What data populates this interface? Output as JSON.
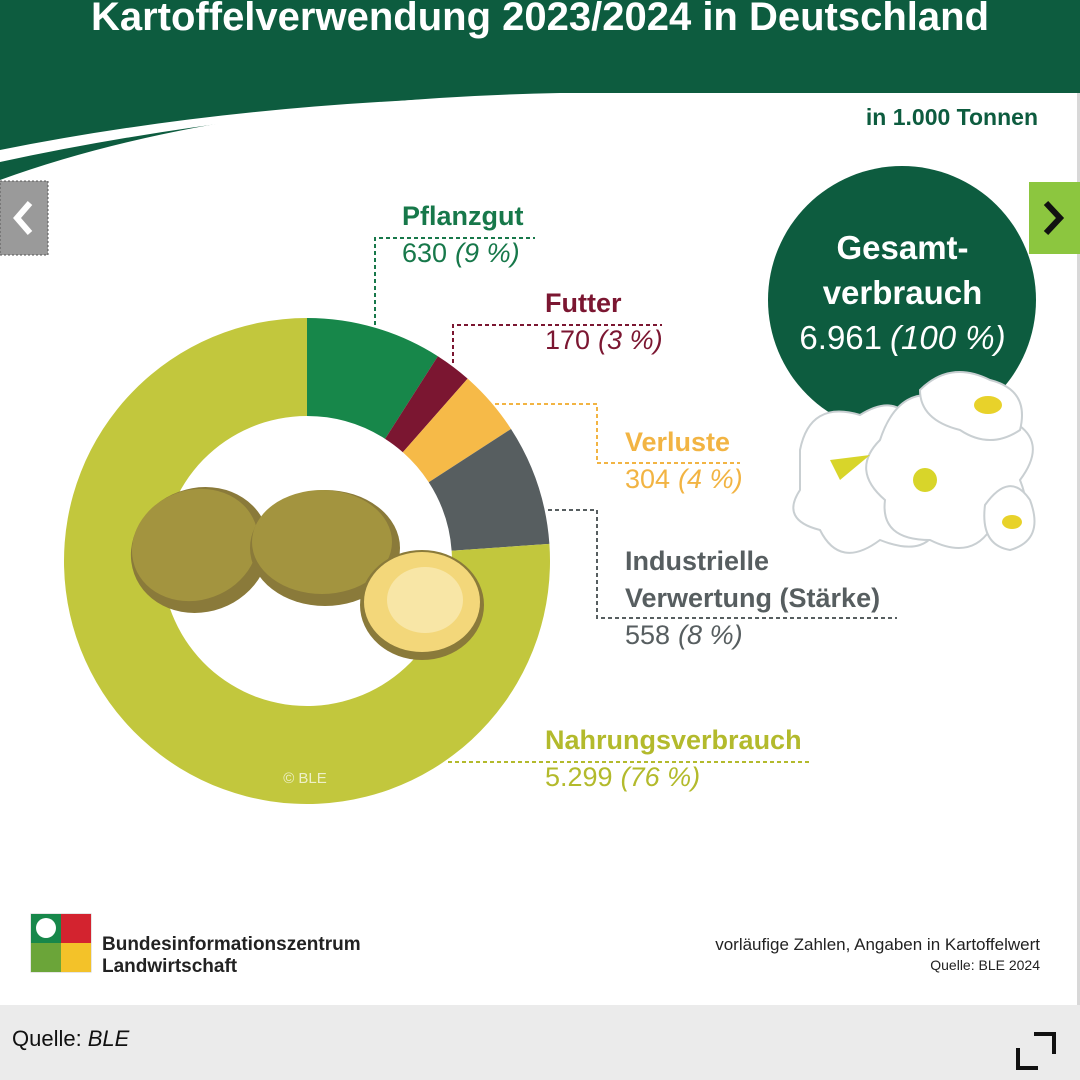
{
  "chart_data": {
    "type": "donut",
    "title": "Kartoffelverwendung 2023/2024 in Deutschland",
    "subtitle": "in 1.000 Tonnen",
    "categories": [
      "Pflanzgut",
      "Futter",
      "Verluste",
      "Industrielle Verwertung (Stärke)",
      "Nahrungsverbrauch"
    ],
    "values": [
      630,
      170,
      304,
      558,
      5299
    ],
    "value_labels": [
      "630",
      "170",
      "304",
      "558",
      "5.299"
    ],
    "percent_labels": [
      "(9 %)",
      "(3 %)",
      "(4 %)",
      "(8 %)",
      "(76 %)"
    ],
    "colors": [
      "#17874a",
      "#7b1631",
      "#f6ba48",
      "#575e60",
      "#c2c73d"
    ],
    "label_colors": [
      "#17784a",
      "#7b1631",
      "#f2b443",
      "#575e60",
      "#b3ba2c"
    ],
    "total": {
      "title": [
        "Gesamt-",
        "verbrauch"
      ],
      "value_label": "6.961",
      "percent_label": "(100 %)"
    },
    "watermark": "© BLE"
  },
  "footer": {
    "org": [
      "Bundesinformationszentrum",
      "Landwirtschaft"
    ],
    "notes": [
      "vorläufige Zahlen, Angaben in Kartoffelwert",
      "Quelle: BLE 2024"
    ]
  },
  "caption": {
    "label": "Quelle:",
    "source": "BLE"
  }
}
